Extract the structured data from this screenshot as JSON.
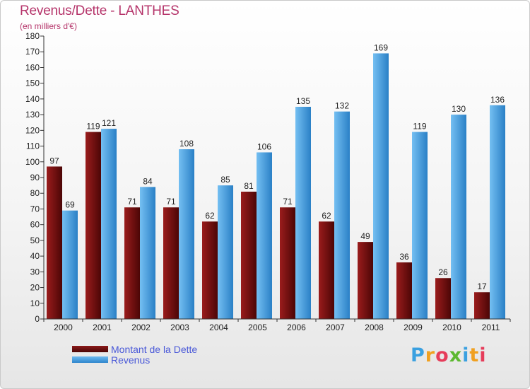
{
  "header": {
    "title": "Revenus/Dette - LANTHES",
    "subtitle": "(en milliers d'€)"
  },
  "legend": {
    "debt_label": "Montant de la Dette",
    "revenue_label": "Revenus"
  },
  "logo": {
    "letters": [
      "P",
      "r",
      "o",
      "x",
      "i",
      "t",
      "i"
    ],
    "colors": [
      "#3aa0e0",
      "#f0a020",
      "#e63c5a",
      "#5cb830",
      "#3aa0e0",
      "#f0a020",
      "#e63c5a"
    ]
  },
  "colors": {
    "debt": "#7a0f0f",
    "revenue": "#4aa6e6",
    "title": "#b5346a",
    "legend_text": "#4a59d8"
  },
  "chart_data": {
    "type": "bar",
    "title": "Revenus/Dette - LANTHES",
    "subtitle": "(en milliers d'€)",
    "categories": [
      "2000",
      "2001",
      "2002",
      "2003",
      "2004",
      "2005",
      "2006",
      "2007",
      "2008",
      "2009",
      "2010",
      "2011"
    ],
    "series": [
      {
        "name": "Montant de la Dette",
        "values": [
          97,
          119,
          71,
          71,
          62,
          81,
          71,
          62,
          49,
          36,
          26,
          17
        ]
      },
      {
        "name": "Revenus",
        "values": [
          69,
          121,
          84,
          108,
          85,
          106,
          135,
          132,
          169,
          119,
          130,
          136
        ]
      }
    ],
    "yticks": [
      0,
      10,
      20,
      30,
      40,
      50,
      60,
      70,
      80,
      90,
      100,
      110,
      120,
      130,
      140,
      150,
      160,
      170,
      180
    ],
    "ylim": [
      0,
      180
    ],
    "grid": false,
    "legend_position": "bottom-left"
  }
}
